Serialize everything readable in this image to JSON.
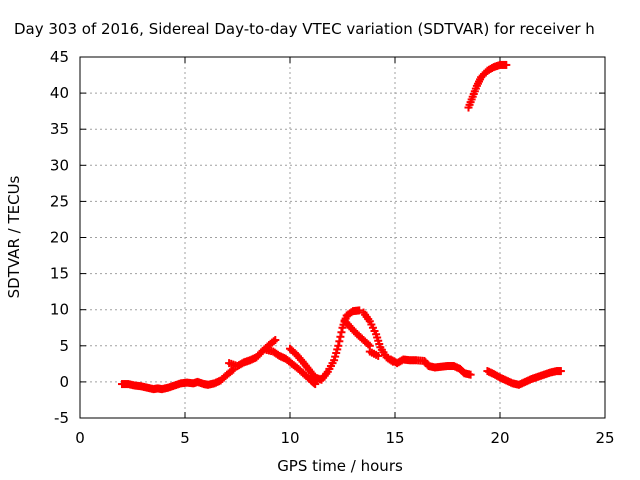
{
  "chart_data": {
    "type": "scatter",
    "title": "Day 303 of 2016, Sidereal Day-to-day VTEC variation (SDTVAR) for receiver h",
    "xlabel": "GPS time / hours",
    "ylabel": "SDTVAR / TECUs",
    "xlim": [
      0,
      25
    ],
    "ylim": [
      -5,
      45
    ],
    "xticks": [
      "0",
      "5",
      "10",
      "15",
      "20",
      "25"
    ],
    "yticks": [
      "-5",
      "0",
      "5",
      "10",
      "15",
      "20",
      "25",
      "30",
      "35",
      "40",
      "45"
    ],
    "grid": true,
    "marker": "plus",
    "color": "#ff0000",
    "series": [
      {
        "values": [
          [
            2.0,
            -0.3
          ],
          [
            2.3,
            -0.3
          ],
          [
            2.6,
            -0.5
          ],
          [
            2.9,
            -0.6
          ],
          [
            3.2,
            -0.8
          ],
          [
            3.5,
            -1.0
          ],
          [
            3.7,
            -0.9
          ],
          [
            3.9,
            -1.0
          ],
          [
            4.2,
            -0.8
          ],
          [
            4.5,
            -0.5
          ],
          [
            4.8,
            -0.2
          ],
          [
            5.1,
            -0.1
          ],
          [
            5.4,
            -0.2
          ],
          [
            5.6,
            0.0
          ],
          [
            5.9,
            -0.3
          ],
          [
            6.1,
            -0.4
          ],
          [
            6.4,
            -0.2
          ],
          [
            6.7,
            0.2
          ],
          [
            7.0,
            1.0
          ],
          [
            7.3,
            1.7
          ],
          [
            7.1,
            2.6
          ],
          [
            7.5,
            2.2
          ],
          [
            7.8,
            2.7
          ],
          [
            8.1,
            3.0
          ],
          [
            8.4,
            3.4
          ],
          [
            8.7,
            4.3
          ],
          [
            9.0,
            5.1
          ],
          [
            9.3,
            5.8
          ],
          [
            8.8,
            4.5
          ],
          [
            9.2,
            4.2
          ],
          [
            9.5,
            3.6
          ],
          [
            9.8,
            3.2
          ],
          [
            10.1,
            2.5
          ],
          [
            10.4,
            1.8
          ],
          [
            10.7,
            1.0
          ],
          [
            11.0,
            0.2
          ],
          [
            11.2,
            -0.3
          ],
          [
            10.0,
            4.6
          ],
          [
            10.3,
            3.8
          ],
          [
            10.6,
            2.8
          ],
          [
            10.9,
            1.7
          ],
          [
            11.2,
            0.6
          ],
          [
            11.5,
            0.3
          ],
          [
            11.8,
            1.4
          ],
          [
            12.1,
            3.0
          ],
          [
            12.3,
            5.0
          ],
          [
            12.5,
            7.5
          ],
          [
            12.7,
            9.2
          ],
          [
            13.0,
            9.8
          ],
          [
            13.3,
            9.9
          ],
          [
            12.6,
            8.5
          ],
          [
            12.9,
            7.5
          ],
          [
            13.2,
            6.6
          ],
          [
            13.5,
            5.8
          ],
          [
            13.8,
            5.0
          ],
          [
            13.5,
            9.6
          ],
          [
            13.8,
            8.4
          ],
          [
            14.1,
            6.6
          ],
          [
            14.3,
            4.8
          ],
          [
            14.6,
            3.4
          ],
          [
            14.9,
            2.8
          ],
          [
            13.8,
            4.2
          ],
          [
            14.2,
            3.6
          ],
          [
            14.8,
            3.1
          ],
          [
            15.1,
            2.6
          ],
          [
            15.4,
            3.1
          ],
          [
            15.7,
            3.0
          ],
          [
            16.0,
            3.0
          ],
          [
            16.4,
            2.9
          ],
          [
            16.6,
            2.2
          ],
          [
            16.9,
            2.0
          ],
          [
            17.2,
            2.1
          ],
          [
            17.5,
            2.2
          ],
          [
            17.8,
            2.2
          ],
          [
            18.1,
            1.8
          ],
          [
            18.3,
            1.2
          ],
          [
            18.6,
            1.0
          ],
          [
            18.5,
            38.0
          ],
          [
            18.7,
            39.5
          ],
          [
            18.9,
            41.0
          ],
          [
            19.1,
            42.2
          ],
          [
            19.4,
            43.1
          ],
          [
            19.7,
            43.6
          ],
          [
            20.0,
            43.9
          ],
          [
            20.3,
            43.9
          ],
          [
            19.4,
            1.5
          ],
          [
            19.7,
            1.1
          ],
          [
            20.0,
            0.6
          ],
          [
            20.3,
            0.2
          ],
          [
            20.6,
            -0.2
          ],
          [
            20.9,
            -0.4
          ],
          [
            21.2,
            0.0
          ],
          [
            21.5,
            0.4
          ],
          [
            21.8,
            0.7
          ],
          [
            22.1,
            1.0
          ],
          [
            22.4,
            1.3
          ],
          [
            22.7,
            1.5
          ],
          [
            22.9,
            1.5
          ]
        ]
      }
    ]
  }
}
